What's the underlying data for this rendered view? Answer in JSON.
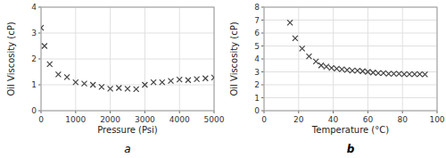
{
  "chart_data": [
    {
      "type": "scatter",
      "title": "a",
      "x": [
        0,
        100,
        250,
        500,
        750,
        1000,
        1250,
        1500,
        1750,
        2000,
        2250,
        2500,
        2750,
        3000,
        3250,
        3500,
        3750,
        4000,
        4250,
        4500,
        4750,
        5000
      ],
      "values": [
        3.2,
        2.5,
        1.8,
        1.4,
        1.3,
        1.1,
        1.05,
        1.0,
        0.92,
        0.85,
        0.88,
        0.85,
        0.83,
        1.0,
        1.1,
        1.1,
        1.15,
        1.2,
        1.18,
        1.22,
        1.25,
        1.28
      ],
      "x_label": "Pressure (Psi)",
      "y_label": "Oil Viscosity (cP)",
      "xlim": [
        0,
        5000
      ],
      "ylim": [
        0,
        4
      ],
      "xticks": [
        0,
        1000,
        2000,
        3000,
        4000,
        5000
      ],
      "yticks": [
        0,
        1,
        2,
        3,
        4
      ],
      "grid": true,
      "marker": "x",
      "color": "#444444"
    },
    {
      "type": "scatter",
      "title": "b",
      "x": [
        15,
        18,
        22,
        26,
        30,
        33,
        36,
        39,
        42,
        45,
        48,
        51,
        54,
        57,
        60,
        63,
        66,
        69,
        72,
        75,
        78,
        81,
        84,
        87,
        90,
        93
      ],
      "values": [
        6.8,
        5.6,
        4.8,
        4.2,
        3.8,
        3.5,
        3.4,
        3.3,
        3.25,
        3.2,
        3.15,
        3.1,
        3.1,
        3.05,
        3.0,
        2.95,
        2.9,
        2.9,
        2.85,
        2.85,
        2.85,
        2.82,
        2.82,
        2.82,
        2.82,
        2.8
      ],
      "x_label": "Temperature (°C)",
      "y_label": "Oil Viscosity (cP)",
      "xlim": [
        0,
        100
      ],
      "ylim": [
        0,
        8
      ],
      "xticks": [
        0,
        20,
        40,
        60,
        80,
        100
      ],
      "yticks": [
        0,
        1,
        2,
        3,
        4,
        5,
        6,
        7,
        8
      ],
      "grid": true,
      "marker": "x",
      "color": "#444444"
    }
  ]
}
